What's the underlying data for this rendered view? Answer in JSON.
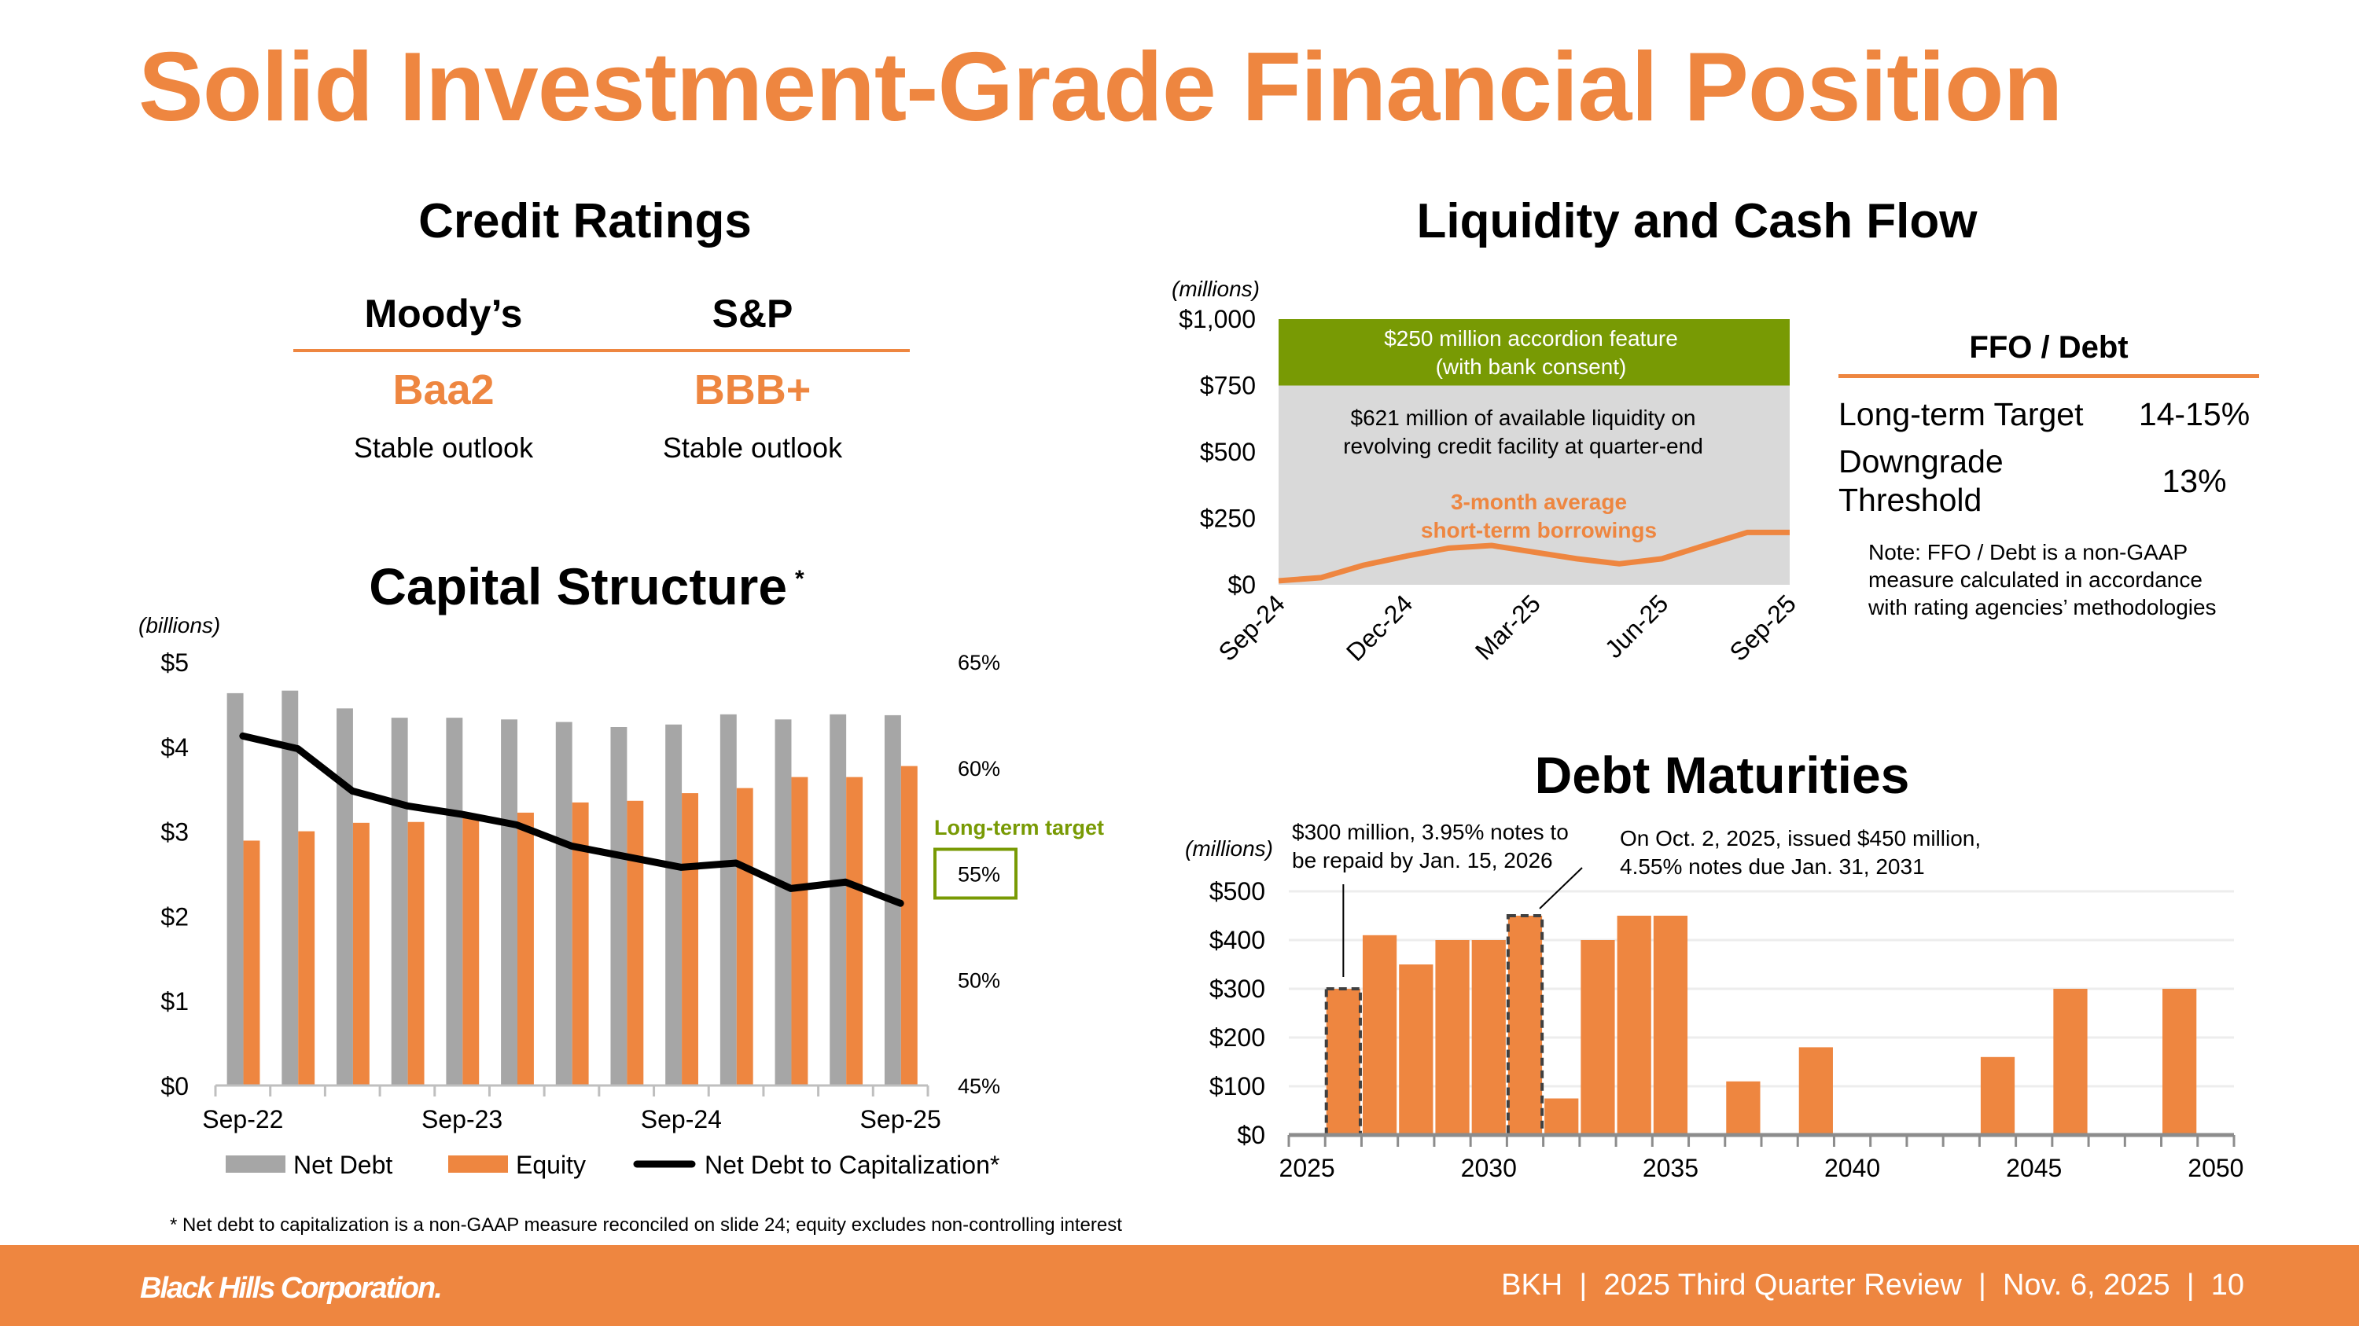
{
  "title": "Solid Investment-Grade Financial Position",
  "credit_ratings": {
    "heading": "Credit Ratings",
    "agencies": [
      {
        "name": "Moody’s",
        "rating": "Baa2",
        "outlook": "Stable outlook"
      },
      {
        "name": "S&P",
        "rating": "BBB+",
        "outlook": "Stable outlook"
      }
    ]
  },
  "ffo_debt": {
    "heading": "FFO / Debt",
    "rows": [
      {
        "label": "Long-term Target",
        "value": "14-15%"
      },
      {
        "label": "Downgrade Threshold",
        "value": "13%"
      }
    ],
    "note": "Note: FFO / Debt is a non-GAAP measure calculated in accordance with rating agencies’ methodologies"
  },
  "colors": {
    "orange": "#EE8640",
    "gray": "#A6A6A6",
    "green": "#789A04",
    "band_gray": "#D9D9D9"
  },
  "chart_data": [
    {
      "id": "capital_structure",
      "type": "bar",
      "title": "Capital Structure",
      "title_marker": "*",
      "unit_label": "(billions)",
      "categories": [
        "Sep-22",
        "Dec-22",
        "Mar-23",
        "Jun-23",
        "Sep-23",
        "Dec-23",
        "Mar-24",
        "Jun-24",
        "Sep-24",
        "Dec-24",
        "Mar-25",
        "Jun-25",
        "Sep-25"
      ],
      "tick_labels": [
        "Sep-22",
        "Sep-23",
        "Sep-24",
        "Sep-25"
      ],
      "y_ticks": [
        "$0",
        "$1",
        "$2",
        "$3",
        "$4",
        "$5"
      ],
      "y2_ticks": [
        "45%",
        "50%",
        "55%",
        "60%",
        "65%"
      ],
      "ylim": [
        0,
        5
      ],
      "y2lim": [
        45,
        65
      ],
      "series": [
        {
          "name": "Net Debt",
          "type": "bar",
          "axis": "left",
          "color": "#A6A6A6",
          "values": [
            4.63,
            4.66,
            4.45,
            4.34,
            4.34,
            4.32,
            4.29,
            4.23,
            4.26,
            4.38,
            4.32,
            4.38,
            4.37
          ]
        },
        {
          "name": "Equity",
          "type": "bar",
          "axis": "left",
          "color": "#EE8640",
          "values": [
            2.89,
            3.0,
            3.1,
            3.11,
            3.17,
            3.22,
            3.34,
            3.36,
            3.45,
            3.51,
            3.64,
            3.64,
            3.77
          ]
        },
        {
          "name": "Net Debt to Capitalization*",
          "type": "line",
          "axis": "right",
          "color": "#000000",
          "values": [
            61.5,
            60.9,
            58.9,
            58.2,
            57.8,
            57.3,
            56.3,
            55.8,
            55.3,
            55.5,
            54.3,
            54.6,
            53.6
          ]
        }
      ],
      "annotation": {
        "text": "Long-term target",
        "value": 55,
        "color": "#789A04"
      },
      "legend_position": "bottom"
    },
    {
      "id": "liquidity",
      "type": "line",
      "title": "Liquidity and Cash Flow",
      "unit_label": "(millions)",
      "x": [
        "Sep-24",
        "Oct-24",
        "Nov-24",
        "Dec-24",
        "Jan-25",
        "Feb-25",
        "Mar-25",
        "Apr-25",
        "May-25",
        "Jun-25",
        "Jul-25",
        "Aug-25",
        "Sep-25"
      ],
      "tick_labels": [
        "Sep-24",
        "Dec-24",
        "Mar-25",
        "Jun-25",
        "Sep-25"
      ],
      "y_ticks": [
        "$0",
        "$250",
        "$500",
        "$750",
        "$1,000"
      ],
      "ylim": [
        0,
        1000
      ],
      "bands": [
        {
          "from": 0,
          "to": 750,
          "color": "#D9D9D9",
          "label": "$621 million of available liquidity on revolving credit facility at quarter-end",
          "lines": [
            "$621 million of available liquidity on",
            "revolving credit facility at quarter-end"
          ]
        },
        {
          "from": 750,
          "to": 1000,
          "color": "#789A04",
          "label": "$250 million accordion feature (with bank consent)",
          "lines": [
            "$250 million accordion feature",
            "(with bank consent)"
          ]
        }
      ],
      "series": [
        {
          "name": "3-month average short-term borrowings",
          "lines": [
            "3-month average",
            "short-term borrowings"
          ],
          "color": "#EE8640",
          "values": [
            15,
            27,
            74,
            108,
            138,
            148,
            123,
            98,
            79,
            98,
            148,
            197,
            197
          ]
        }
      ]
    },
    {
      "id": "debt_maturities",
      "type": "bar",
      "title": "Debt Maturities",
      "unit_label": "(millions)",
      "x": [
        2025,
        2026,
        2027,
        2028,
        2029,
        2030,
        2031,
        2032,
        2033,
        2034,
        2035,
        2036,
        2037,
        2038,
        2039,
        2040,
        2041,
        2042,
        2043,
        2044,
        2045,
        2046,
        2047,
        2048,
        2049,
        2050
      ],
      "values": [
        0,
        300,
        410,
        350,
        400,
        400,
        450,
        75,
        400,
        450,
        450,
        0,
        110,
        0,
        180,
        0,
        0,
        0,
        0,
        160,
        0,
        300,
        0,
        0,
        300,
        0
      ],
      "highlighted": [
        2026,
        2031
      ],
      "tick_labels": [
        "2025",
        "2030",
        "2035",
        "2040",
        "2045",
        "2050"
      ],
      "y_ticks": [
        "$0",
        "$100",
        "$200",
        "$300",
        "$400",
        "$500"
      ],
      "ylim": [
        0,
        500
      ],
      "grid": true,
      "annotations": [
        {
          "year": 2026,
          "lines": [
            "$300 million, 3.95% notes to",
            "be repaid by Jan. 15, 2026"
          ]
        },
        {
          "year": 2031,
          "lines": [
            "On Oct. 2, 2025, issued $450 million,",
            "4.55% notes due Jan. 31, 2031"
          ]
        }
      ]
    }
  ],
  "footnote": "* Net debt to capitalization is a non-GAAP measure reconciled on slide 24; equity excludes non-controlling interest",
  "footer": {
    "logo": "Black Hills Corporation.",
    "text": "BKH  |  2025 Third Quarter Review  |  Nov. 6, 2025  |  10"
  }
}
